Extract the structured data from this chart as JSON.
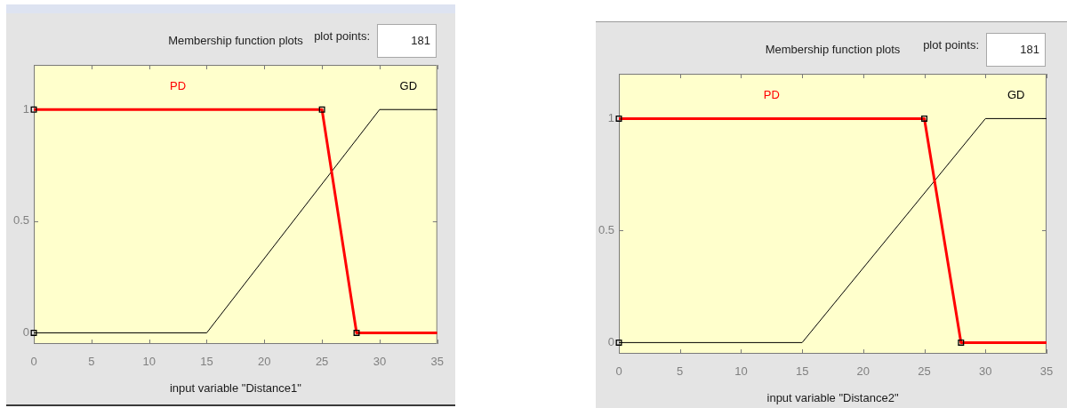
{
  "chart_data": [
    {
      "type": "line",
      "title": "Membership function plots",
      "xlabel": "input variable \"Distance1\"",
      "annotations": [
        "plot points:",
        "181"
      ],
      "xlim": [
        0,
        35
      ],
      "xticks": [
        0,
        5,
        10,
        15,
        20,
        25,
        30,
        35
      ],
      "ylim": [
        -0.05,
        1.2
      ],
      "yticks": [
        0,
        0.5,
        1
      ],
      "series": [
        {
          "name": "PD",
          "color": "#ff0000",
          "x": [
            0,
            25,
            28,
            35
          ],
          "values": [
            1,
            1,
            0,
            0
          ]
        },
        {
          "name": "GD",
          "color": "#000000",
          "x": [
            0,
            15,
            30,
            35
          ],
          "values": [
            0,
            0,
            1,
            1
          ]
        },
        {
          "type": "scatter",
          "color": "#000000",
          "marker": "square",
          "x": [
            0,
            0,
            25,
            28
          ],
          "values": [
            0,
            1,
            1,
            0
          ]
        }
      ]
    },
    {
      "type": "line",
      "title": "Membership function plots",
      "xlabel": "input variable \"Distance2\"",
      "annotations": [
        "plot points:",
        "181"
      ],
      "xlim": [
        0,
        35
      ],
      "xticks": [
        0,
        5,
        10,
        15,
        20,
        25,
        30,
        35
      ],
      "ylim": [
        -0.05,
        1.2
      ],
      "yticks": [
        0,
        0.5,
        1
      ],
      "series": [
        {
          "name": "PD",
          "color": "#ff0000",
          "x": [
            0,
            25,
            28,
            35
          ],
          "values": [
            1,
            1,
            0,
            0
          ]
        },
        {
          "name": "GD",
          "color": "#000000",
          "x": [
            0,
            15,
            30,
            35
          ],
          "values": [
            0,
            0,
            1,
            1
          ]
        },
        {
          "type": "scatter",
          "color": "#000000",
          "marker": "square",
          "x": [
            0,
            0,
            25,
            28
          ],
          "values": [
            0,
            1,
            1,
            0
          ]
        }
      ]
    }
  ]
}
